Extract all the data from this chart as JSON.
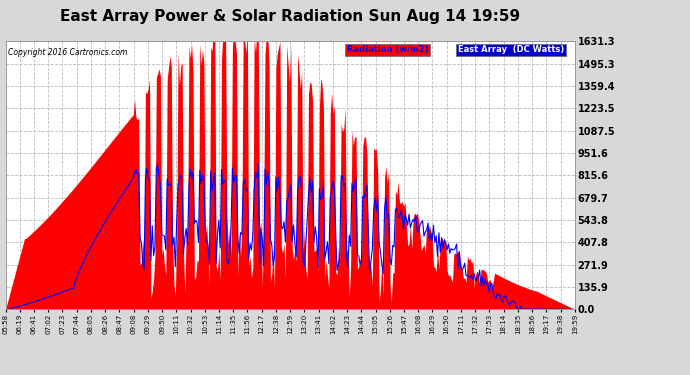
{
  "title": "East Array Power & Solar Radiation Sun Aug 14 19:59",
  "copyright": "Copyright 2016 Cartronics.com",
  "yticks": [
    0.0,
    135.9,
    271.9,
    407.8,
    543.8,
    679.7,
    815.6,
    951.6,
    1087.5,
    1223.5,
    1359.4,
    1495.3,
    1631.3
  ],
  "ymax": 1631.3,
  "background_color": "#d8d8d8",
  "plot_bg": "#ffffff",
  "grid_color": "#bbbbbb",
  "red_fill_color": "#ff0000",
  "blue_line_color": "#0000ff",
  "title_fontsize": 11,
  "x_labels": [
    "05:58",
    "06:19",
    "06:41",
    "07:02",
    "07:23",
    "07:44",
    "08:05",
    "08:26",
    "08:47",
    "09:08",
    "09:29",
    "09:50",
    "10:11",
    "10:32",
    "10:53",
    "11:14",
    "11:35",
    "11:56",
    "12:17",
    "12:38",
    "12:59",
    "13:20",
    "13:41",
    "14:02",
    "14:23",
    "14:44",
    "15:05",
    "15:26",
    "15:47",
    "16:08",
    "16:29",
    "16:50",
    "17:11",
    "17:32",
    "17:53",
    "18:14",
    "18:35",
    "18:56",
    "19:17",
    "19:38",
    "19:59"
  ]
}
